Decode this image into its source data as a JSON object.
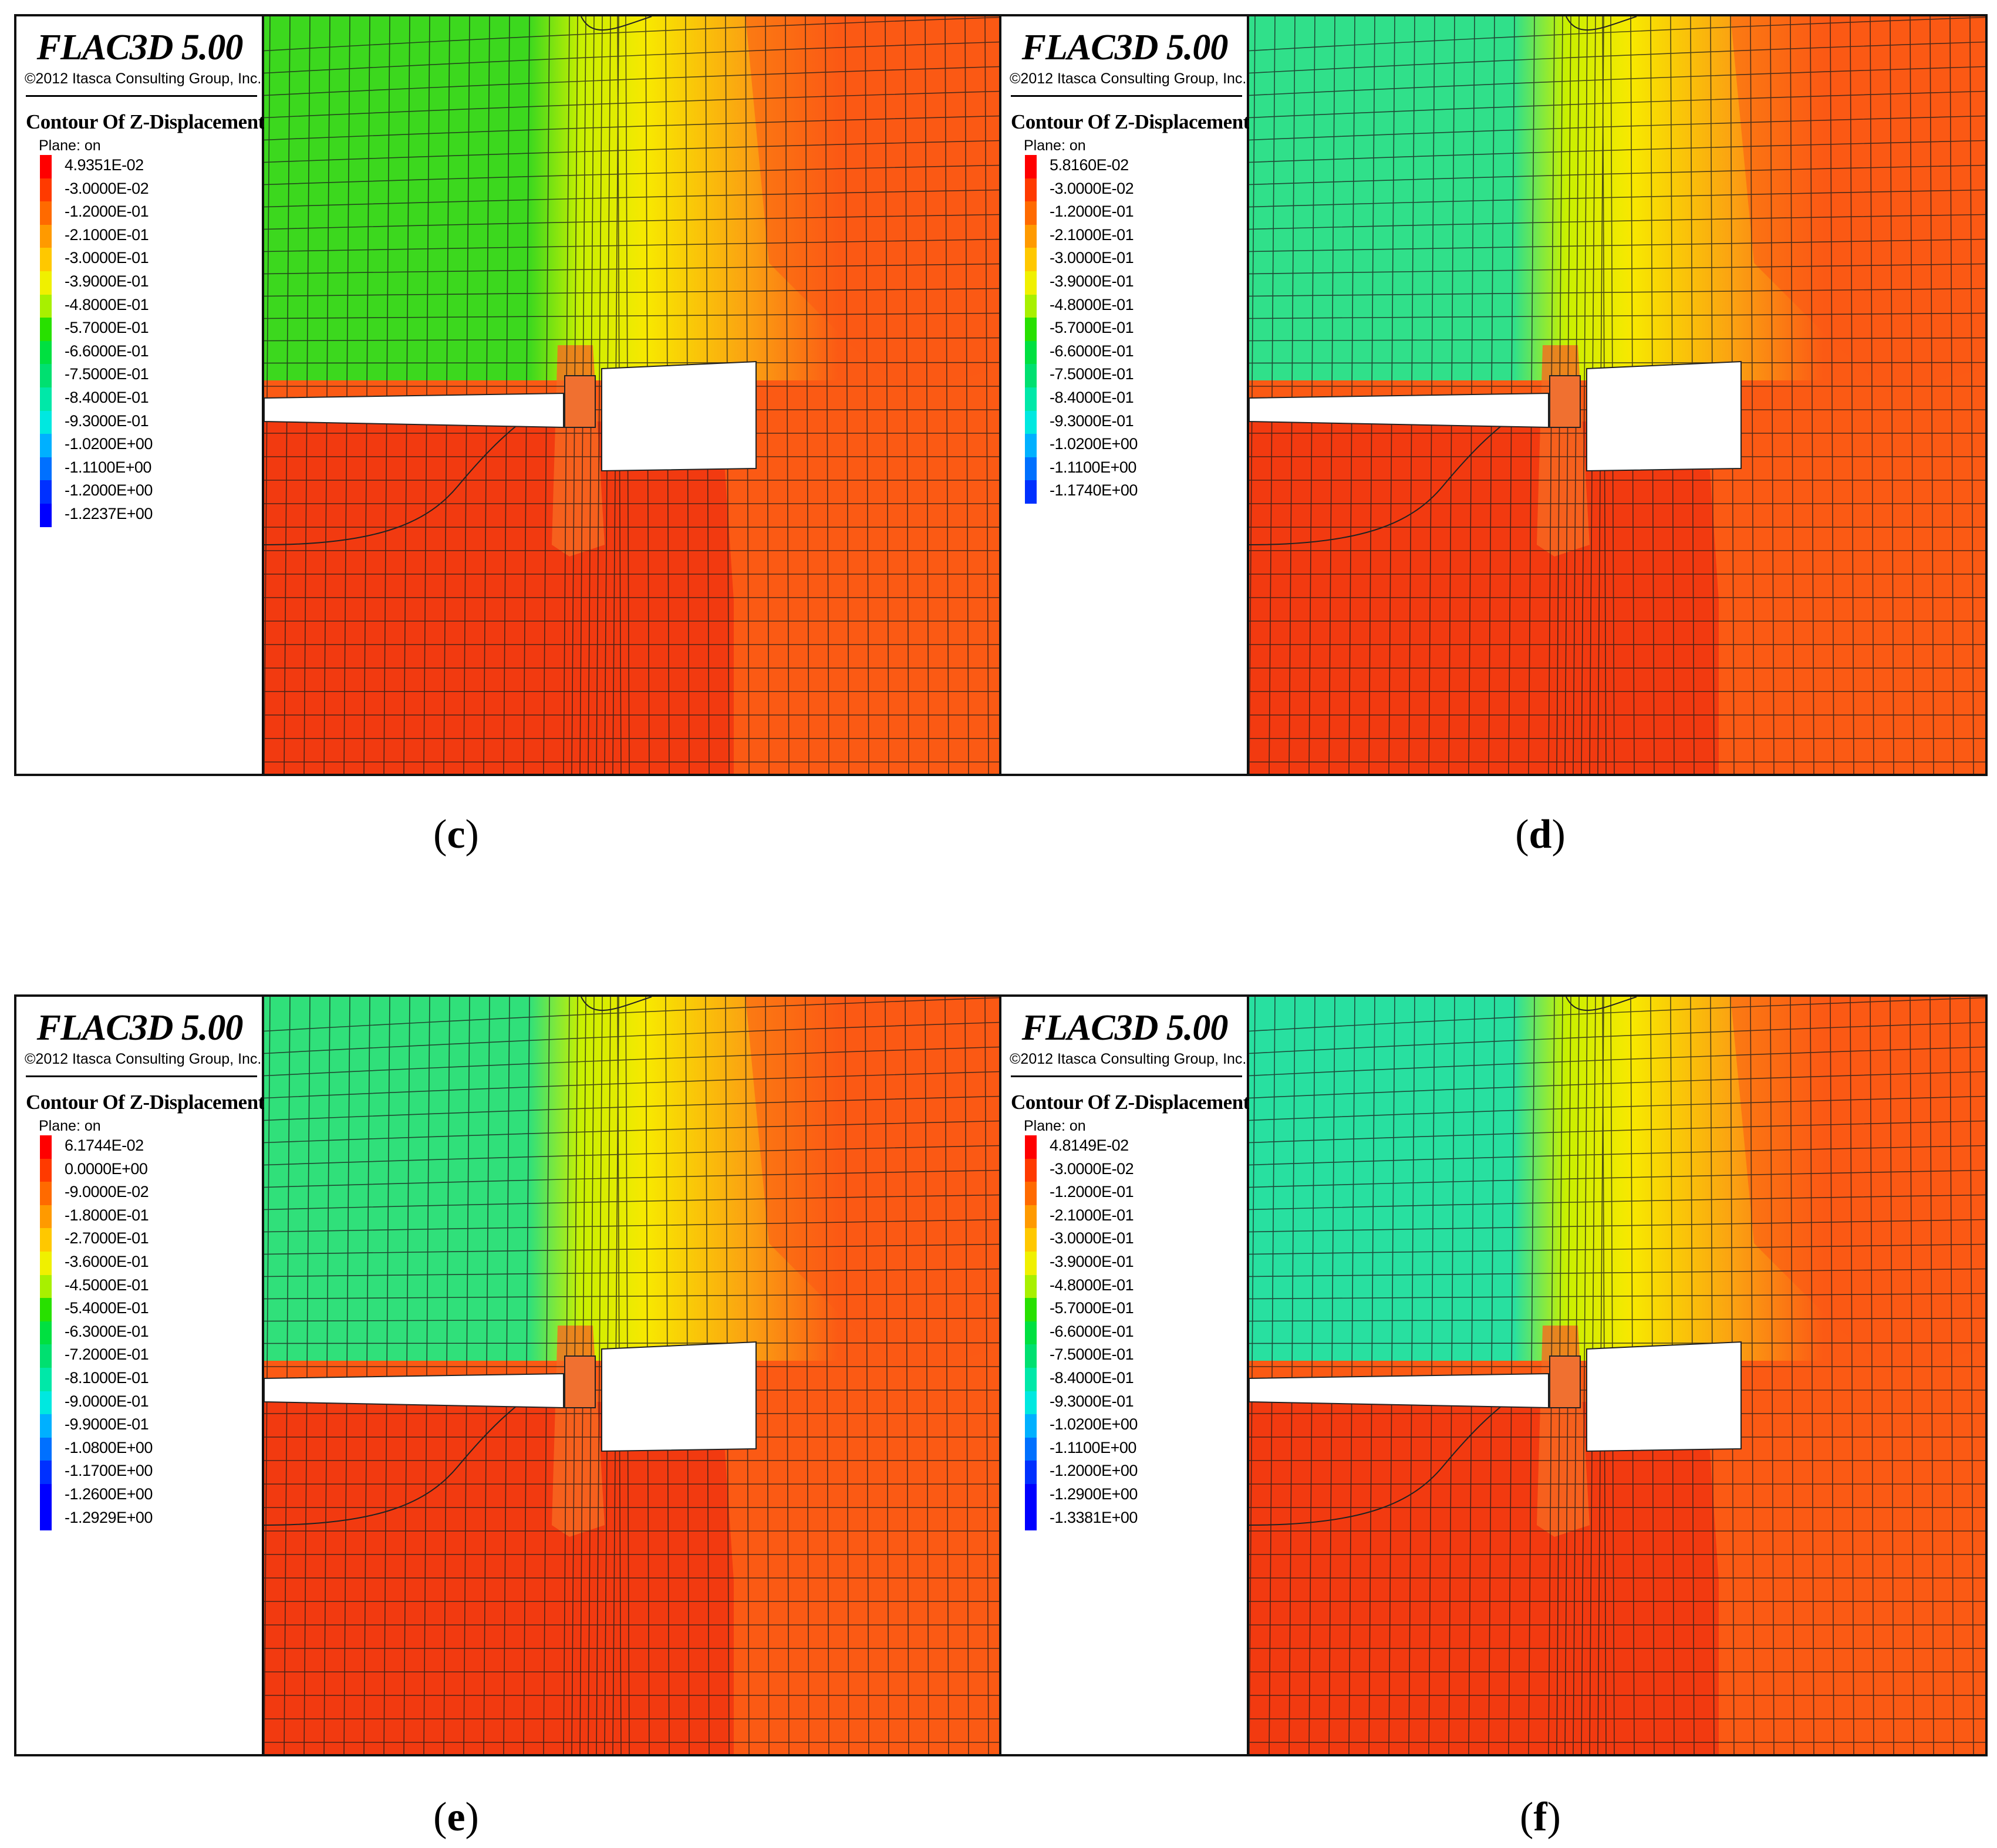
{
  "panels": [
    {
      "id": "c",
      "title": "FLAC3D 5.00",
      "copyright": "©2012 Itasca Consulting Group, Inc.",
      "contour_label": "Contour Of Z-Displacement",
      "plane_label": "Plane: on",
      "legend_values": [
        "4.9351E-02",
        "-3.0000E-02",
        "-1.2000E-01",
        "-2.1000E-01",
        "-3.0000E-01",
        "-3.9000E-01",
        "-4.8000E-01",
        "-5.7000E-01",
        "-6.6000E-01",
        "-7.5000E-01",
        "-8.4000E-01",
        "-9.3000E-01",
        "-1.0200E+00",
        "-1.1100E+00",
        "-1.2000E+00",
        "-1.2237E+00"
      ],
      "caption_open": "(",
      "caption_letter": "c",
      "caption_close": ")",
      "upper_left_color": "#3cd81e"
    },
    {
      "id": "d",
      "title": "FLAC3D 5.00",
      "copyright": "©2012 Itasca Consulting Group, Inc.",
      "contour_label": "Contour Of Z-Displacement",
      "plane_label": "Plane: on",
      "legend_values": [
        "5.8160E-02",
        "-3.0000E-02",
        "-1.2000E-01",
        "-2.1000E-01",
        "-3.0000E-01",
        "-3.9000E-01",
        "-4.8000E-01",
        "-5.7000E-01",
        "-6.6000E-01",
        "-7.5000E-01",
        "-8.4000E-01",
        "-9.3000E-01",
        "-1.0200E+00",
        "-1.1100E+00",
        "-1.1740E+00"
      ],
      "caption_open": "(",
      "caption_letter": "d",
      "caption_close": ")",
      "upper_left_color": "#30e08a"
    },
    {
      "id": "e",
      "title": "FLAC3D 5.00",
      "copyright": "©2012 Itasca Consulting Group, Inc.",
      "contour_label": "Contour Of Z-Displacement",
      "plane_label": "Plane: on",
      "legend_values": [
        "6.1744E-02",
        "0.0000E+00",
        "-9.0000E-02",
        "-1.8000E-01",
        "-2.7000E-01",
        "-3.6000E-01",
        "-4.5000E-01",
        "-5.4000E-01",
        "-6.3000E-01",
        "-7.2000E-01",
        "-8.1000E-01",
        "-9.0000E-01",
        "-9.9000E-01",
        "-1.0800E+00",
        "-1.1700E+00",
        "-1.2600E+00",
        "-1.2929E+00"
      ],
      "caption_open": "(",
      "caption_letter": "e",
      "caption_close": ")",
      "upper_left_color": "#30e07a"
    },
    {
      "id": "f",
      "title": "FLAC3D 5.00",
      "copyright": "©2012 Itasca Consulting Group, Inc.",
      "contour_label": "Contour Of Z-Displacement",
      "plane_label": "Plane: on",
      "legend_values": [
        "4.8149E-02",
        "-3.0000E-02",
        "-1.2000E-01",
        "-2.1000E-01",
        "-3.0000E-01",
        "-3.9000E-01",
        "-4.8000E-01",
        "-5.7000E-01",
        "-6.6000E-01",
        "-7.5000E-01",
        "-8.4000E-01",
        "-9.3000E-01",
        "-1.0200E+00",
        "-1.1100E+00",
        "-1.2000E+00",
        "-1.2900E+00",
        "-1.3381E+00"
      ],
      "caption_open": "(",
      "caption_letter": "f",
      "caption_close": ")",
      "upper_left_color": "#28e0a0"
    }
  ],
  "legend_colors": [
    "#ff0000",
    "#ff3a00",
    "#ff6a00",
    "#ff9a00",
    "#ffc800",
    "#f0f000",
    "#a8f000",
    "#28e000",
    "#00e040",
    "#00e070",
    "#00e8a8",
    "#00e8e0",
    "#00b0ff",
    "#0070ff",
    "#0030ff",
    "#0000ff",
    "#0000ff"
  ],
  "colors": {
    "bottom_red": "#f23a10",
    "right_orange": "#fb5a14",
    "mid_yellow": "#f8e800",
    "orange_yellow": "#fba012"
  }
}
